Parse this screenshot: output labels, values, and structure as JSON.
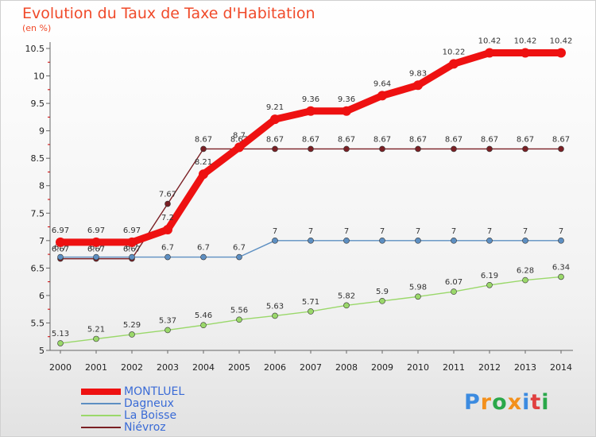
{
  "title": "Evolution du Taux de Taxe d'Habitation",
  "unit_label": "(en %)",
  "brand": {
    "letters": [
      "P",
      "r",
      "o",
      "x",
      "i",
      "t",
      "i"
    ],
    "colors": [
      "#3c8be0",
      "#f3901c",
      "#2aa84a",
      "#f3901c",
      "#3c8be0",
      "#e04040",
      "#2aa84a"
    ]
  },
  "chart_data": {
    "type": "line",
    "x": [
      "2000",
      "2001",
      "2002",
      "2003",
      "2004",
      "2005",
      "2006",
      "2007",
      "2008",
      "2009",
      "2010",
      "2011",
      "2012",
      "2013",
      "2014"
    ],
    "ylim": [
      5,
      10.5
    ],
    "yticks": [
      "5",
      "5.5",
      "6",
      "6.5",
      "7",
      "7.5",
      "8",
      "8.5",
      "9",
      "9.5",
      "10",
      "10.5"
    ],
    "grid": false,
    "legend": "bottom-left",
    "series": [
      {
        "name": "Niévroz",
        "color": "#7a1f24",
        "values": [
          6.67,
          6.67,
          6.67,
          7.67,
          8.67,
          8.67,
          8.67,
          8.67,
          8.67,
          8.67,
          8.67,
          8.67,
          8.67,
          8.67,
          8.67
        ],
        "labels": [
          "6.67",
          "6.67",
          "6.67",
          "7.67",
          "8.67",
          "8.67",
          "8.67",
          "8.67",
          "8.67",
          "8.67",
          "8.67",
          "8.67",
          "8.67",
          "8.67",
          "8.67"
        ]
      },
      {
        "name": "Dagneux",
        "color": "#5d8fc2",
        "values": [
          6.7,
          6.7,
          6.7,
          6.7,
          6.7,
          6.7,
          7,
          7,
          7,
          7,
          7,
          7,
          7,
          7,
          7
        ],
        "labels": [
          "6.7",
          "6.7",
          "6.7",
          "6.7",
          "6.7",
          "6.7",
          "7",
          "7",
          "7",
          "7",
          "7",
          "7",
          "7",
          "7",
          "7"
        ]
      },
      {
        "name": "La Boisse",
        "color": "#9ad86a",
        "values": [
          5.13,
          5.21,
          5.29,
          5.37,
          5.46,
          5.56,
          5.63,
          5.71,
          5.82,
          5.9,
          5.98,
          6.07,
          6.19,
          6.28,
          6.34
        ],
        "labels": [
          "5.13",
          "5.21",
          "5.29",
          "5.37",
          "5.46",
          "5.56",
          "5.63",
          "5.71",
          "5.82",
          "5.9",
          "5.98",
          "6.07",
          "6.19",
          "6.28",
          "6.34"
        ]
      },
      {
        "name": "MONTLUEL",
        "color": "#ee1111",
        "values": [
          6.97,
          6.97,
          6.97,
          7.2,
          8.21,
          8.7,
          9.21,
          9.36,
          9.36,
          9.64,
          9.83,
          10.22,
          10.42,
          10.42,
          10.42
        ],
        "labels": [
          "6.97",
          "6.97",
          "6.97",
          "7.2",
          "8.21",
          "8.7",
          "9.21",
          "9.36",
          "9.36",
          "9.64",
          "9.83",
          "10.22",
          "10.42",
          "10.42",
          "10.42"
        ]
      }
    ]
  },
  "legend_items": [
    {
      "label": "MONTLUEL",
      "color": "#ee1111"
    },
    {
      "label": "Dagneux",
      "color": "#5d8fc2"
    },
    {
      "label": "La Boisse",
      "color": "#9ad86a"
    },
    {
      "label": "Niévroz",
      "color": "#7a1f24"
    }
  ]
}
